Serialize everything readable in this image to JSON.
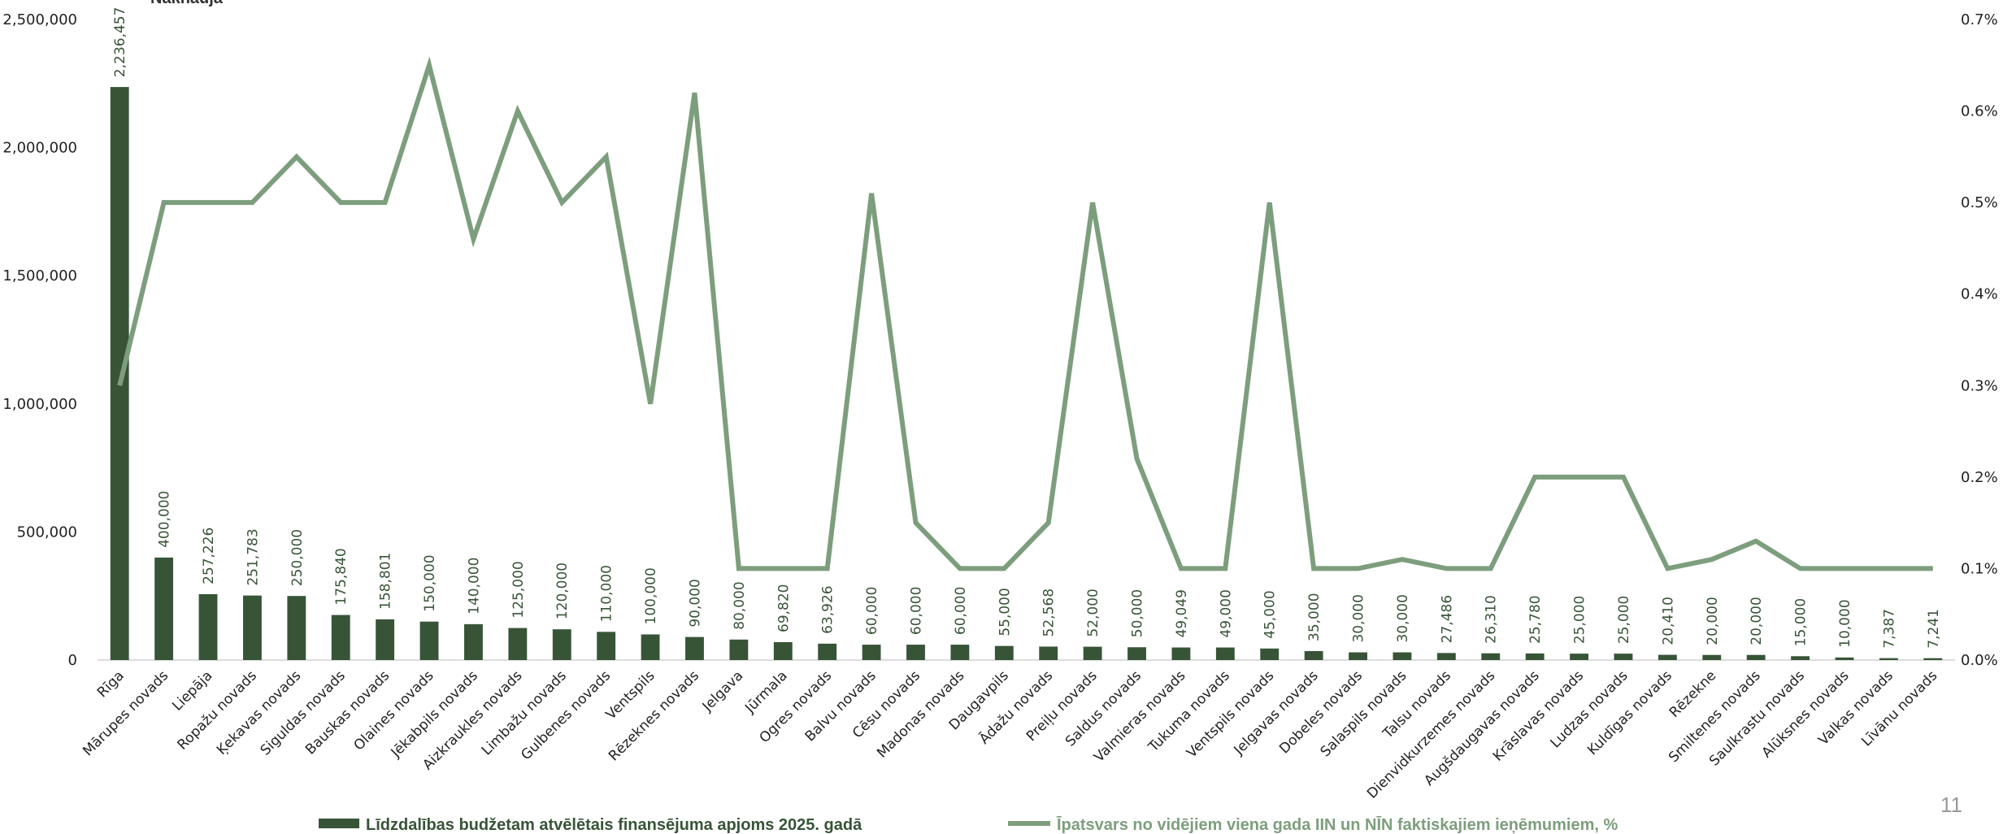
{
  "page_number": "11",
  "chart_data": {
    "type": "bar",
    "title_fragment": "Nāknāuja",
    "categories": [
      "Rīga",
      "Mārupes novads",
      "Liepāja",
      "Ropažu novads",
      "Ķekavas novads",
      "Siguldas novads",
      "Bauskas novads",
      "Olaines novads",
      "Jēkabpils novads",
      "Aizkraukles novads",
      "Limbažu novads",
      "Gulbenes novads",
      "Ventspils",
      "Rēzeknes novads",
      "Jelgava",
      "Jūrmala",
      "Ogres novads",
      "Balvu novads",
      "Cēsu novads",
      "Madonas novads",
      "Daugavpils",
      "Ādažu novads",
      "Preiļu novads",
      "Saldus novads",
      "Valmieras novads",
      "Tukuma novads",
      "Ventspils novads",
      "Jelgavas novads",
      "Dobeles novads",
      "Salaspils novads",
      "Talsu novads",
      "Dienvidkurzemes novads",
      "Augšdaugavas novads",
      "Krāslavas novads",
      "Ludzas novads",
      "Kuldīgas novads",
      "Rēzekne",
      "Smiltenes novads",
      "Saulkrastu novads",
      "Alūksnes novads",
      "Valkas novads",
      "Līvānu novads"
    ],
    "series": [
      {
        "name": "Līdzdalības budžetam atvēlētais finansējuma apjoms 2025. gadā",
        "type": "bar",
        "axis": "left",
        "color": "#375437",
        "values": [
          2236457,
          400000,
          257226,
          251783,
          250000,
          175840,
          158801,
          150000,
          140000,
          125000,
          120000,
          110000,
          100000,
          90000,
          80000,
          69820,
          63926,
          60000,
          60000,
          60000,
          55000,
          52568,
          52000,
          50000,
          49049,
          49000,
          45000,
          35000,
          30000,
          30000,
          27486,
          26310,
          25780,
          25000,
          25000,
          20410,
          20000,
          20000,
          15000,
          10000,
          7387,
          7241
        ],
        "labels": [
          "2,236,457",
          "400,000",
          "257,226",
          "251,783",
          "250,000",
          "175,840",
          "158,801",
          "150,000",
          "140,000",
          "125,000",
          "120,000",
          "110,000",
          "100,000",
          "90,000",
          "80,000",
          "69,820",
          "63,926",
          "60,000",
          "60,000",
          "60,000",
          "55,000",
          "52,568",
          "52,000",
          "50,000",
          "49,049",
          "49,000",
          "45,000",
          "35,000",
          "30,000",
          "30,000",
          "27,486",
          "26,310",
          "25,780",
          "25,000",
          "25,000",
          "20,410",
          "20,000",
          "20,000",
          "15,000",
          "10,000",
          "7,387",
          "7,241"
        ]
      },
      {
        "name": "Īpatsvars no vidējiem viena gada IIN un NĪN faktiskajiem ieņēmumiem, %",
        "type": "line",
        "axis": "right",
        "color": "#7d9e7d",
        "values": [
          0.3,
          0.5,
          0.5,
          0.5,
          0.55,
          0.5,
          0.5,
          0.65,
          0.46,
          0.6,
          0.5,
          0.55,
          0.28,
          0.62,
          0.1,
          0.1,
          0.1,
          0.51,
          0.15,
          0.1,
          0.1,
          0.15,
          0.5,
          0.22,
          0.1,
          0.1,
          0.5,
          0.1,
          0.1,
          0.11,
          0.1,
          0.1,
          0.2,
          0.2,
          0.2,
          0.1,
          0.11,
          0.13,
          0.1,
          0.1,
          0.1,
          0.1
        ]
      }
    ],
    "left_axis": {
      "ylim": [
        0,
        2500000
      ],
      "ticks": [
        "0",
        "500,000",
        "1,000,000",
        "1,500,000",
        "2,000,000",
        "2,500,000"
      ]
    },
    "right_axis": {
      "ylim": [
        0,
        0.7
      ],
      "ticks": [
        "0.0%",
        "0.1%",
        "0.2%",
        "0.3%",
        "0.4%",
        "0.5%",
        "0.6%",
        "0.7%"
      ]
    },
    "grid": false,
    "legend_position": "bottom"
  }
}
